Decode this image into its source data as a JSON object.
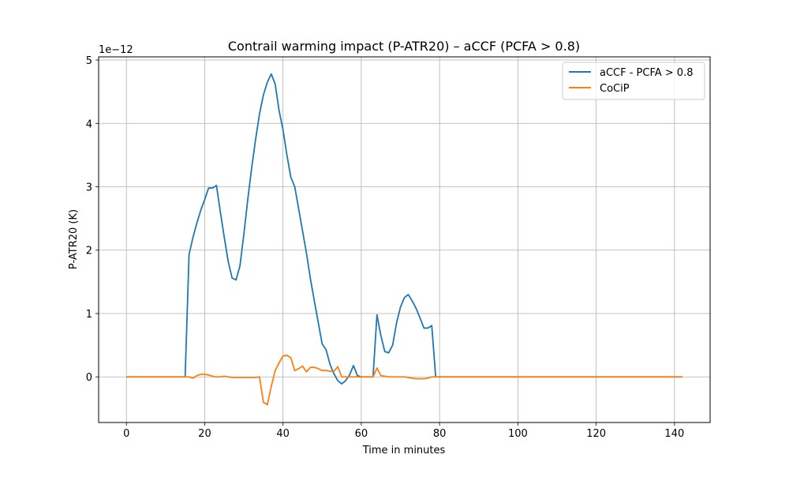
{
  "chart_data": {
    "type": "line",
    "title": "Contrail warming impact (P-ATR20) – aCCF (PCFA > 0.8)",
    "xlabel": "Time in minutes",
    "ylabel": "P-ATR20 (K)",
    "y_offset_label": "1e−12",
    "xlim": [
      -7.1,
      149.1
    ],
    "ylim": [
      -0.72,
      5.05
    ],
    "xticks": [
      0,
      20,
      40,
      60,
      80,
      100,
      120,
      140
    ],
    "yticks": [
      0,
      1,
      2,
      3,
      4,
      5
    ],
    "grid": true,
    "legend_position": "top-right",
    "series": [
      {
        "name": "aCCF - PCFA > 0.8",
        "color": "#1f77b4",
        "x": [
          0,
          15,
          16,
          17,
          18,
          19,
          20,
          21,
          22,
          23,
          24,
          25,
          26,
          27,
          28,
          29,
          30,
          31,
          32,
          33,
          34,
          35,
          36,
          37,
          38,
          39,
          40,
          41,
          42,
          43,
          44,
          45,
          46,
          47,
          48,
          49,
          50,
          51,
          52,
          53,
          54,
          55,
          56,
          57,
          58,
          59,
          60,
          61,
          62,
          63,
          64,
          65,
          66,
          67,
          68,
          69,
          70,
          71,
          72,
          73,
          74,
          75,
          76,
          77,
          78,
          79,
          80,
          142
        ],
        "values": [
          0,
          0,
          1.93,
          2.2,
          2.43,
          2.63,
          2.8,
          2.98,
          2.98,
          3.02,
          2.6,
          2.2,
          1.82,
          1.56,
          1.53,
          1.75,
          2.25,
          2.8,
          3.3,
          3.75,
          4.15,
          4.45,
          4.65,
          4.78,
          4.62,
          4.2,
          3.9,
          3.5,
          3.15,
          3.0,
          2.65,
          2.3,
          1.95,
          1.55,
          1.2,
          0.86,
          0.52,
          0.43,
          0.2,
          0.05,
          -0.06,
          -0.11,
          -0.06,
          0.03,
          0.18,
          0.02,
          0,
          0,
          0,
          0,
          0.98,
          0.65,
          0.4,
          0.38,
          0.5,
          0.85,
          1.1,
          1.25,
          1.3,
          1.2,
          1.08,
          0.93,
          0.77,
          0.77,
          0.81,
          0,
          0,
          0
        ]
      },
      {
        "name": "CoCiP",
        "color": "#ff7f0e",
        "x": [
          0,
          15,
          16,
          17,
          18,
          19,
          20,
          21,
          22,
          23,
          24,
          25,
          26,
          27,
          28,
          29,
          30,
          31,
          32,
          33,
          34,
          35,
          36,
          37,
          38,
          39,
          40,
          41,
          42,
          43,
          44,
          45,
          46,
          47,
          48,
          49,
          50,
          51,
          52,
          53,
          54,
          55,
          56,
          57,
          58,
          59,
          60,
          61,
          62,
          63,
          64,
          65,
          66,
          67,
          68,
          69,
          70,
          71,
          72,
          73,
          74,
          75,
          76,
          77,
          78,
          79,
          80,
          142
        ],
        "values": [
          0,
          0,
          0.0,
          -0.02,
          0.02,
          0.04,
          0.04,
          0.03,
          0.01,
          0.0,
          0.0,
          0.01,
          0.0,
          -0.01,
          -0.01,
          -0.01,
          -0.01,
          -0.01,
          -0.01,
          -0.01,
          0.0,
          -0.4,
          -0.44,
          -0.15,
          0.1,
          0.22,
          0.33,
          0.34,
          0.3,
          0.1,
          0.13,
          0.17,
          0.08,
          0.15,
          0.15,
          0.13,
          0.1,
          0.1,
          0.09,
          0.09,
          0.16,
          0.0,
          0.0,
          0.0,
          0.0,
          0.0,
          0.0,
          0.0,
          0.0,
          0.0,
          0.14,
          0.02,
          0.01,
          0.0,
          0.0,
          0.0,
          0.0,
          0.0,
          -0.01,
          -0.02,
          -0.03,
          -0.03,
          -0.03,
          -0.02,
          0.0,
          0.0,
          0.0,
          0.0
        ]
      }
    ]
  }
}
